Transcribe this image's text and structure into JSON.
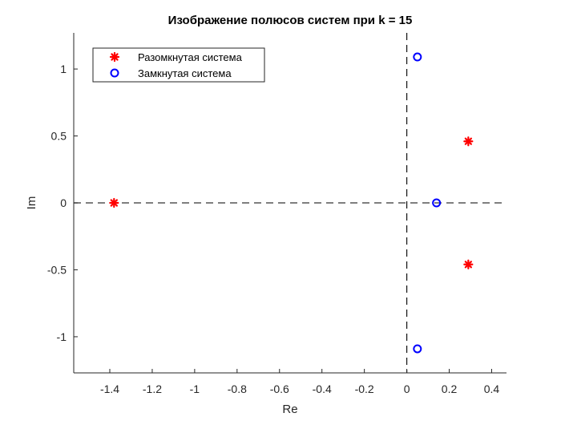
{
  "chart_data": {
    "type": "scatter",
    "title": "Изображение полюсов систем при k = 15",
    "xlabel": "Re",
    "ylabel": "Im",
    "xlim": [
      -1.57,
      0.47
    ],
    "ylim": [
      -1.27,
      1.27
    ],
    "xticks": [
      -1.4,
      -1.2,
      -1,
      -0.8,
      -0.6,
      -0.4,
      -0.2,
      0,
      0.2,
      0.4
    ],
    "xtick_labels": [
      "-1.4",
      "-1.2",
      "-1",
      "-0.8",
      "-0.6",
      "-0.4",
      "-0.2",
      "0",
      "0.2",
      "0.4"
    ],
    "yticks": [
      -1,
      -0.5,
      0,
      0.5,
      1
    ],
    "ytick_labels": [
      "-1",
      "-0.5",
      "0",
      "0.5",
      "1"
    ],
    "grid": false,
    "zero_lines": {
      "style": "dashed",
      "color": "#555555"
    },
    "legend": {
      "position": "top-left",
      "entries": [
        {
          "label": "Разомкнутая система",
          "marker": "asterisk",
          "color": "#ff0000"
        },
        {
          "label": "Замкнутая система",
          "marker": "circle",
          "color": "#0000ff"
        }
      ]
    },
    "series": [
      {
        "name": "Разомкнутая система",
        "marker": "asterisk",
        "color": "#ff0000",
        "points": [
          {
            "x": -1.38,
            "y": 0
          },
          {
            "x": 0.29,
            "y": 0.46
          },
          {
            "x": 0.29,
            "y": -0.46
          }
        ]
      },
      {
        "name": "Замкнутая система",
        "marker": "circle",
        "color": "#0000ff",
        "points": [
          {
            "x": 0.05,
            "y": 1.09
          },
          {
            "x": 0.05,
            "y": -1.09
          },
          {
            "x": 0.14,
            "y": 0
          }
        ]
      }
    ]
  }
}
